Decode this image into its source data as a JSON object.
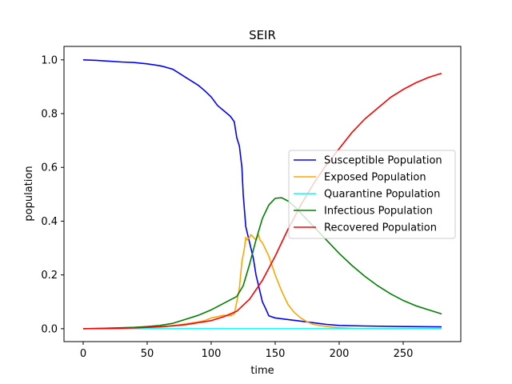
{
  "chart_data": {
    "type": "line",
    "title": "SEIR",
    "xlabel": "time",
    "ylabel": "population",
    "xlim": [
      -15,
      295
    ],
    "ylim": [
      -0.048,
      1.05
    ],
    "xticks": [
      0,
      50,
      100,
      150,
      200,
      250
    ],
    "xtick_labels": [
      "0",
      "50",
      "100",
      "150",
      "200",
      "250"
    ],
    "yticks": [
      0.0,
      0.2,
      0.4,
      0.6,
      0.8,
      1.0
    ],
    "ytick_labels": [
      "0.0",
      "0.2",
      "0.4",
      "0.6",
      "0.8",
      "1.0"
    ],
    "grid": false,
    "legend_position": "center-right",
    "series": [
      {
        "name": "Susceptible Population",
        "color": "#0000ff",
        "x": [
          0,
          10,
          20,
          30,
          40,
          50,
          60,
          65,
          70,
          75,
          80,
          85,
          90,
          95,
          100,
          105,
          110,
          115,
          118,
          120,
          122,
          124,
          125,
          127,
          130,
          133,
          135,
          138,
          140,
          143,
          145,
          150,
          160,
          170,
          180,
          190,
          200,
          220,
          250,
          280
        ],
        "y": [
          1.0,
          0.998,
          0.995,
          0.992,
          0.99,
          0.985,
          0.978,
          0.972,
          0.965,
          0.95,
          0.935,
          0.92,
          0.905,
          0.885,
          0.862,
          0.83,
          0.81,
          0.79,
          0.77,
          0.71,
          0.68,
          0.6,
          0.5,
          0.38,
          0.32,
          0.26,
          0.2,
          0.14,
          0.1,
          0.07,
          0.048,
          0.04,
          0.034,
          0.028,
          0.022,
          0.016,
          0.012,
          0.01,
          0.008,
          0.007
        ]
      },
      {
        "name": "Exposed Population",
        "color": "#ffa500",
        "x": [
          0,
          20,
          40,
          60,
          70,
          80,
          90,
          95,
          100,
          105,
          110,
          115,
          118,
          120,
          122,
          124,
          126,
          127,
          128,
          130,
          131,
          133,
          135,
          137,
          138,
          140,
          142,
          145,
          150,
          155,
          160,
          165,
          170,
          175,
          180,
          190,
          200,
          220,
          250,
          280
        ],
        "y": [
          0.0,
          0.002,
          0.004,
          0.007,
          0.01,
          0.018,
          0.025,
          0.03,
          0.04,
          0.045,
          0.05,
          0.048,
          0.055,
          0.1,
          0.15,
          0.25,
          0.3,
          0.34,
          0.33,
          0.34,
          0.35,
          0.34,
          0.33,
          0.35,
          0.33,
          0.32,
          0.3,
          0.27,
          0.2,
          0.14,
          0.09,
          0.06,
          0.04,
          0.025,
          0.016,
          0.008,
          0.003,
          0.0,
          0.0,
          0.0
        ]
      },
      {
        "name": "Quarantine Population",
        "color": "#00ffff",
        "x": [
          0,
          50,
          100,
          150,
          200,
          250,
          280
        ],
        "y": [
          0.0,
          0.0,
          0.0,
          0.0,
          0.0,
          0.0,
          0.0
        ]
      },
      {
        "name": "Infectious Population",
        "color": "#008000",
        "x": [
          0,
          20,
          40,
          50,
          60,
          70,
          80,
          90,
          100,
          110,
          120,
          125,
          130,
          135,
          140,
          145,
          150,
          155,
          160,
          165,
          170,
          180,
          190,
          200,
          210,
          220,
          230,
          240,
          250,
          260,
          270,
          280
        ],
        "y": [
          0.0,
          0.002,
          0.005,
          0.008,
          0.012,
          0.02,
          0.035,
          0.05,
          0.07,
          0.095,
          0.12,
          0.16,
          0.24,
          0.33,
          0.41,
          0.46,
          0.485,
          0.487,
          0.475,
          0.455,
          0.43,
          0.38,
          0.33,
          0.28,
          0.235,
          0.195,
          0.16,
          0.13,
          0.105,
          0.085,
          0.07,
          0.055
        ]
      },
      {
        "name": "Recovered Population",
        "color": "#ff0000",
        "x": [
          0,
          20,
          40,
          60,
          80,
          100,
          110,
          120,
          130,
          140,
          150,
          160,
          170,
          180,
          190,
          200,
          210,
          220,
          230,
          240,
          250,
          260,
          270,
          280
        ],
        "y": [
          0.0,
          0.001,
          0.003,
          0.007,
          0.015,
          0.03,
          0.045,
          0.065,
          0.11,
          0.18,
          0.27,
          0.37,
          0.46,
          0.54,
          0.61,
          0.67,
          0.73,
          0.78,
          0.82,
          0.86,
          0.89,
          0.915,
          0.935,
          0.95
        ]
      }
    ]
  }
}
